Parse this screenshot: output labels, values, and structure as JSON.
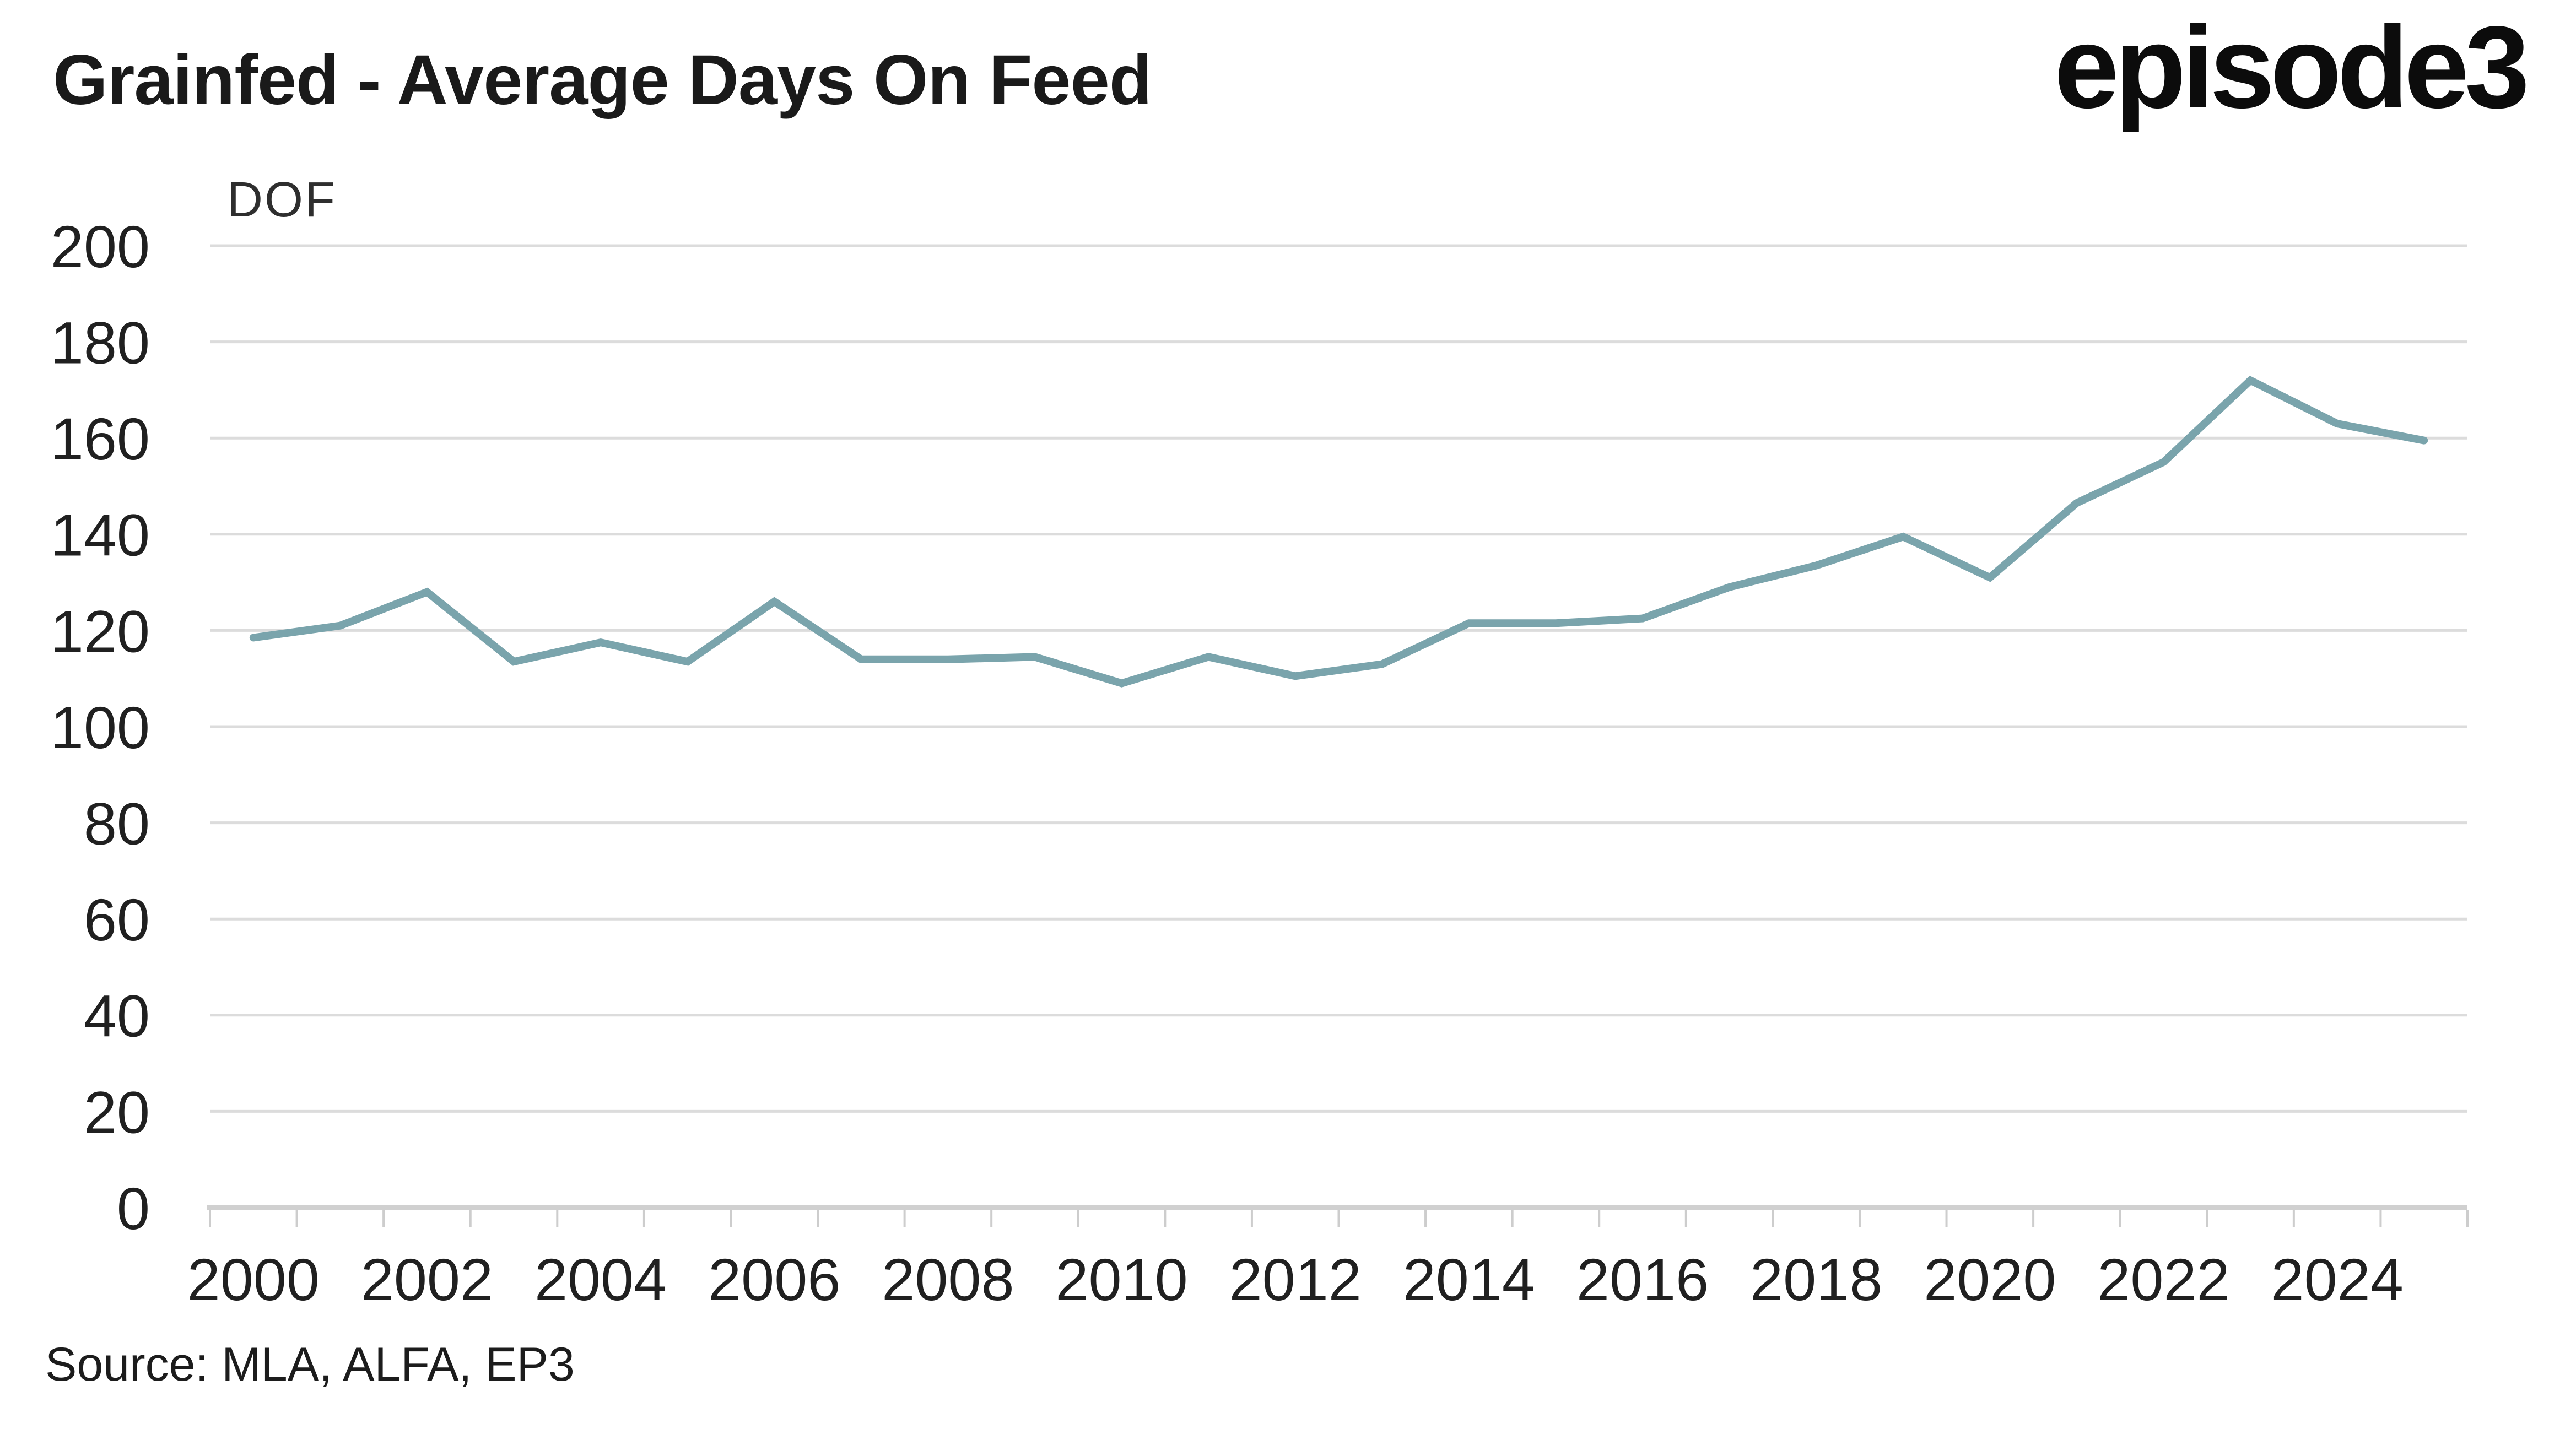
{
  "header": {
    "title": "Grainfed - Average Days On Feed",
    "logo_text": "episode3"
  },
  "footer": {
    "source_label": "Source: MLA, ALFA, EP3"
  },
  "chart_data": {
    "type": "line",
    "title": "Grainfed - Average Days On Feed",
    "ylabel": "DOF",
    "xlabel": "",
    "x": [
      2000,
      2001,
      2002,
      2003,
      2004,
      2005,
      2006,
      2007,
      2008,
      2009,
      2010,
      2011,
      2012,
      2013,
      2014,
      2015,
      2016,
      2017,
      2018,
      2019,
      2020,
      2021,
      2022,
      2023,
      2024,
      2025
    ],
    "series": [
      {
        "name": "Average Days On Feed",
        "color": "#7AA4AC",
        "values": [
          118.5,
          121,
          128,
          113.5,
          117.5,
          113.5,
          126,
          114,
          114,
          114.5,
          109,
          114.5,
          110.5,
          113,
          121.5,
          121.5,
          122.5,
          129,
          133.5,
          139.5,
          131,
          146.5,
          155,
          172,
          163,
          159.5
        ]
      }
    ],
    "ylim": [
      0,
      200
    ],
    "yticks": [
      0,
      20,
      40,
      60,
      80,
      100,
      120,
      140,
      160,
      180,
      200
    ],
    "xticks": [
      2000,
      2002,
      2004,
      2006,
      2008,
      2010,
      2012,
      2014,
      2016,
      2018,
      2020,
      2022,
      2024
    ],
    "grid": "horizontal",
    "legend": "none",
    "colors": {
      "line": "#7AA4AC",
      "grid": "#DCDCDC",
      "axis": "#D0D0D0",
      "tick": "#CDCDCD",
      "text": "#202020",
      "muted_text": "#2E2E2E"
    }
  }
}
